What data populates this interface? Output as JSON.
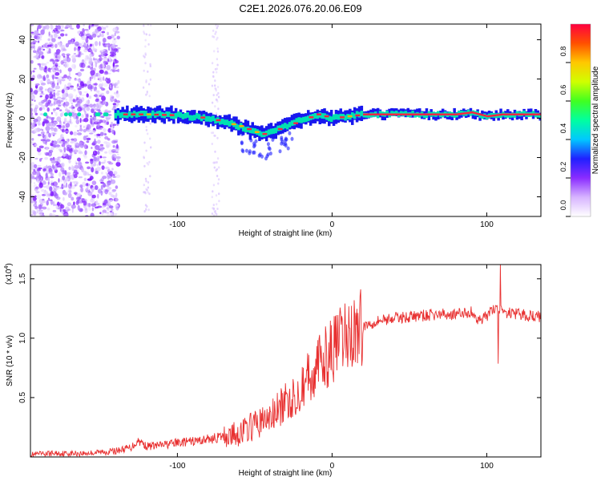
{
  "title": "C2E1.2026.076.20.06.E09",
  "chart_data": [
    {
      "type": "heatmap",
      "title": "C2E1.2026.076.20.06.E09",
      "xlabel": "Height of straight line (km)",
      "ylabel": "Frequency (Hz)",
      "xlim": [
        -195,
        135
      ],
      "ylim": [
        -50,
        48
      ],
      "xticks": [
        -100,
        0,
        100
      ],
      "yticks": [
        -40,
        -20,
        0,
        20,
        40
      ],
      "colorbar": {
        "label": "Normalized spectral amplitude",
        "range": [
          0,
          1
        ],
        "ticks": [
          0.0,
          0.2,
          0.4,
          0.6,
          0.8
        ]
      },
      "ridge": {
        "x": [
          -195,
          -140,
          -120,
          -100,
          -80,
          -70,
          -60,
          -50,
          -45,
          -40,
          -30,
          -20,
          -10,
          0,
          10,
          20,
          40,
          60,
          80,
          90,
          100,
          110,
          135
        ],
        "y": [
          2,
          2,
          2,
          1.5,
          0,
          -2,
          -4,
          -7,
          -8,
          -7,
          -4,
          -1,
          2,
          0,
          1,
          2,
          2,
          2,
          2,
          3,
          1,
          2,
          2
        ]
      }
    },
    {
      "type": "line",
      "xlabel": "Height of straight line (km)",
      "ylabel": "SNR (10 * v/v)",
      "yscale_label": "(x10",
      "yscale_exp": "4",
      "yscale_close": ")",
      "xlim": [
        -195,
        135
      ],
      "ylim": [
        0,
        1.62
      ],
      "xticks": [
        -100,
        0,
        100
      ],
      "yticks": [
        0.5,
        1.0,
        1.5
      ],
      "series": [
        {
          "name": "SNR",
          "color": "#e83030",
          "x": [
            -195,
            -180,
            -160,
            -140,
            -130,
            -125,
            -120,
            -110,
            -100,
            -90,
            -80,
            -70,
            -60,
            -50,
            -40,
            -30,
            -20,
            -10,
            0,
            10,
            20,
            30,
            40,
            50,
            60,
            70,
            80,
            90,
            95,
            100,
            105,
            110,
            120,
            135
          ],
          "y": [
            0.02,
            0.03,
            0.03,
            0.05,
            0.08,
            0.14,
            0.09,
            0.1,
            0.12,
            0.13,
            0.15,
            0.17,
            0.2,
            0.27,
            0.33,
            0.45,
            0.6,
            0.75,
            0.9,
            1.02,
            1.1,
            1.15,
            1.17,
            1.18,
            1.19,
            1.2,
            1.2,
            1.22,
            1.15,
            1.18,
            1.25,
            1.22,
            1.2,
            1.18
          ]
        }
      ]
    }
  ]
}
